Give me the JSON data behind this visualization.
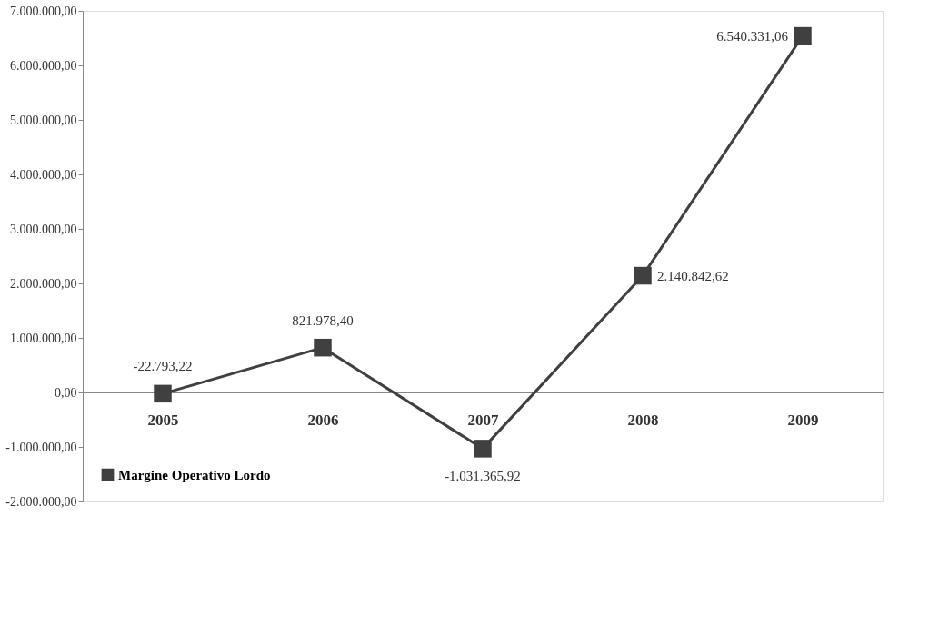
{
  "chart_data": {
    "type": "line",
    "categories": [
      "2005",
      "2006",
      "2007",
      "2008",
      "2009"
    ],
    "series": [
      {
        "name": "Margine Operativo Lordo",
        "color": "#404040",
        "values": [
          -22793.22,
          821978.4,
          -1031365.92,
          2140842.62,
          6540331.06
        ],
        "value_labels": [
          "-22.793,22",
          "821.978,40",
          "-1.031.365,92",
          "2.140.842,62",
          "6.540.331,06"
        ]
      }
    ],
    "ylim": [
      -2000000,
      7000000
    ],
    "yticks": [
      {
        "value": -2000000,
        "label": "-2.000.000,00"
      },
      {
        "value": -1000000,
        "label": "-1.000.000,00"
      },
      {
        "value": 0,
        "label": "0,00"
      },
      {
        "value": 1000000,
        "label": "1.000.000,00"
      },
      {
        "value": 2000000,
        "label": "2.000.000,00"
      },
      {
        "value": 3000000,
        "label": "3.000.000,00"
      },
      {
        "value": 4000000,
        "label": "4.000.000,00"
      },
      {
        "value": 5000000,
        "label": "5.000.000,00"
      },
      {
        "value": 6000000,
        "label": "6.000.000,00"
      },
      {
        "value": 7000000,
        "label": "7.000.000,00"
      }
    ],
    "grid": false,
    "legend": "bottom left",
    "marker": "square",
    "line_style": "solid"
  }
}
